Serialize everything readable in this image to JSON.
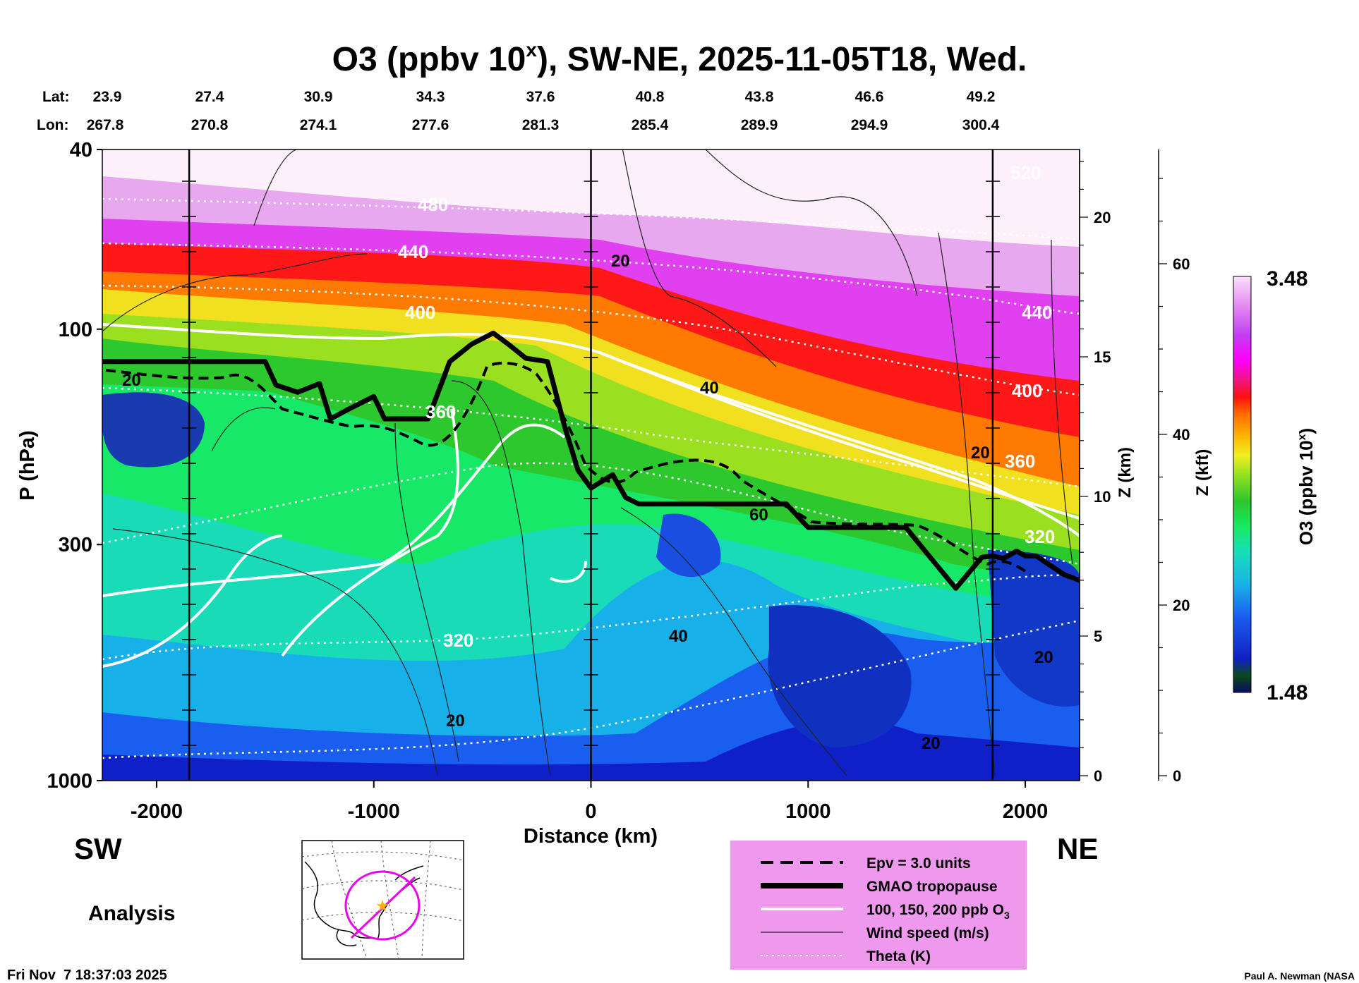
{
  "chart_data": {
    "type": "heatmap",
    "title": "O3 (ppbv 10",
    "title_sup": "x",
    "title_rest": "), SW-NE, 2025-11-05T18, Wed.",
    "xlabel": "Distance (km)",
    "ylabel": "P (hPa)",
    "z_km_label": "Z (km)",
    "z_kft_label": "Z (kft)",
    "colorbar_label": "O3 (ppbv 10",
    "colorbar_sup": "x",
    "colorbar_close": ")",
    "colorbar_max": "3.48",
    "colorbar_min": "1.48",
    "colorbar_range": [
      1.48,
      3.48
    ],
    "xlim": [
      -2250,
      2250
    ],
    "ylim_hpa": [
      1000,
      40
    ],
    "x_ticks": [
      -2000,
      -1000,
      0,
      1000,
      2000
    ],
    "x_tick_labels": [
      "-2000",
      "-1000",
      "0",
      "1000",
      "2000"
    ],
    "p_ticks": [
      40,
      100,
      300,
      1000
    ],
    "p_tick_labels": [
      "40",
      "100",
      "300",
      "1000"
    ],
    "z_km_ticks": [
      0,
      5,
      10,
      15,
      20
    ],
    "z_km_tick_labels": [
      "0",
      "5",
      "10",
      "15",
      "20"
    ],
    "z_kft_ticks": [
      0,
      20,
      40,
      60
    ],
    "z_kft_tick_labels": [
      "0",
      "20",
      "40",
      "60"
    ],
    "lat_label": "Lat:",
    "lon_label": "Lon:",
    "latitudes": [
      "23.9",
      "27.4",
      "30.9",
      "34.3",
      "37.6",
      "40.8",
      "43.8",
      "46.6",
      "49.2"
    ],
    "longitudes": [
      "267.8",
      "270.8",
      "274.1",
      "277.6",
      "281.3",
      "285.4",
      "289.9",
      "294.9",
      "300.4"
    ],
    "vertical_marker_lines_km": [
      -1850,
      0,
      1850
    ],
    "tropopause": {
      "x": [
        -2250,
        -1500,
        -1450,
        -1350,
        -1250,
        -1200,
        -1100,
        -1000,
        -950,
        -850,
        -750,
        -650,
        -550,
        -450,
        -380,
        -300,
        -200,
        -120,
        -60,
        0,
        100,
        160,
        220,
        500,
        900,
        1000,
        1450,
        1550,
        1680,
        1800,
        1850,
        1900,
        1960,
        2000,
        2050,
        2100,
        2180,
        2250
      ],
      "p_hpa": [
        118,
        118,
        133,
        138,
        132,
        158,
        149,
        141,
        158,
        158,
        158,
        118,
        108,
        102,
        108,
        116,
        118,
        165,
        205,
        225,
        210,
        236,
        244,
        244,
        244,
        275,
        275,
        315,
        375,
        320,
        318,
        322,
        310,
        318,
        318,
        330,
        350,
        360
      ]
    },
    "theta_contours_K": [
      320,
      360,
      400,
      440,
      480,
      520
    ],
    "theta_labels": [
      "320",
      "360",
      "400",
      "440",
      "480",
      "520"
    ],
    "wind_labels": [
      "20",
      "40",
      "60"
    ],
    "legend": [
      {
        "style": "dashed",
        "label": "Epv = 3.0 units"
      },
      {
        "style": "thick",
        "label": "GMAO tropopause"
      },
      {
        "style": "white",
        "label": "100, 150, 200 ppb O"
      },
      {
        "style": "thin",
        "label": "Wind speed (m/s)"
      },
      {
        "style": "dotted-white",
        "label": "Theta (K)"
      }
    ],
    "legend_sub": "3",
    "left_direction": "SW",
    "right_direction": "NE",
    "mode": "Analysis",
    "timestamp": "Fri Nov  7 18:37:03 2025",
    "credit": "Paul A. Newman (NASA"
  },
  "colors": {
    "plot_bg": "#fdf0fb",
    "legend_bg": "#ee99ee",
    "map_circle": "#ee00ee",
    "star": "#ffb000"
  }
}
